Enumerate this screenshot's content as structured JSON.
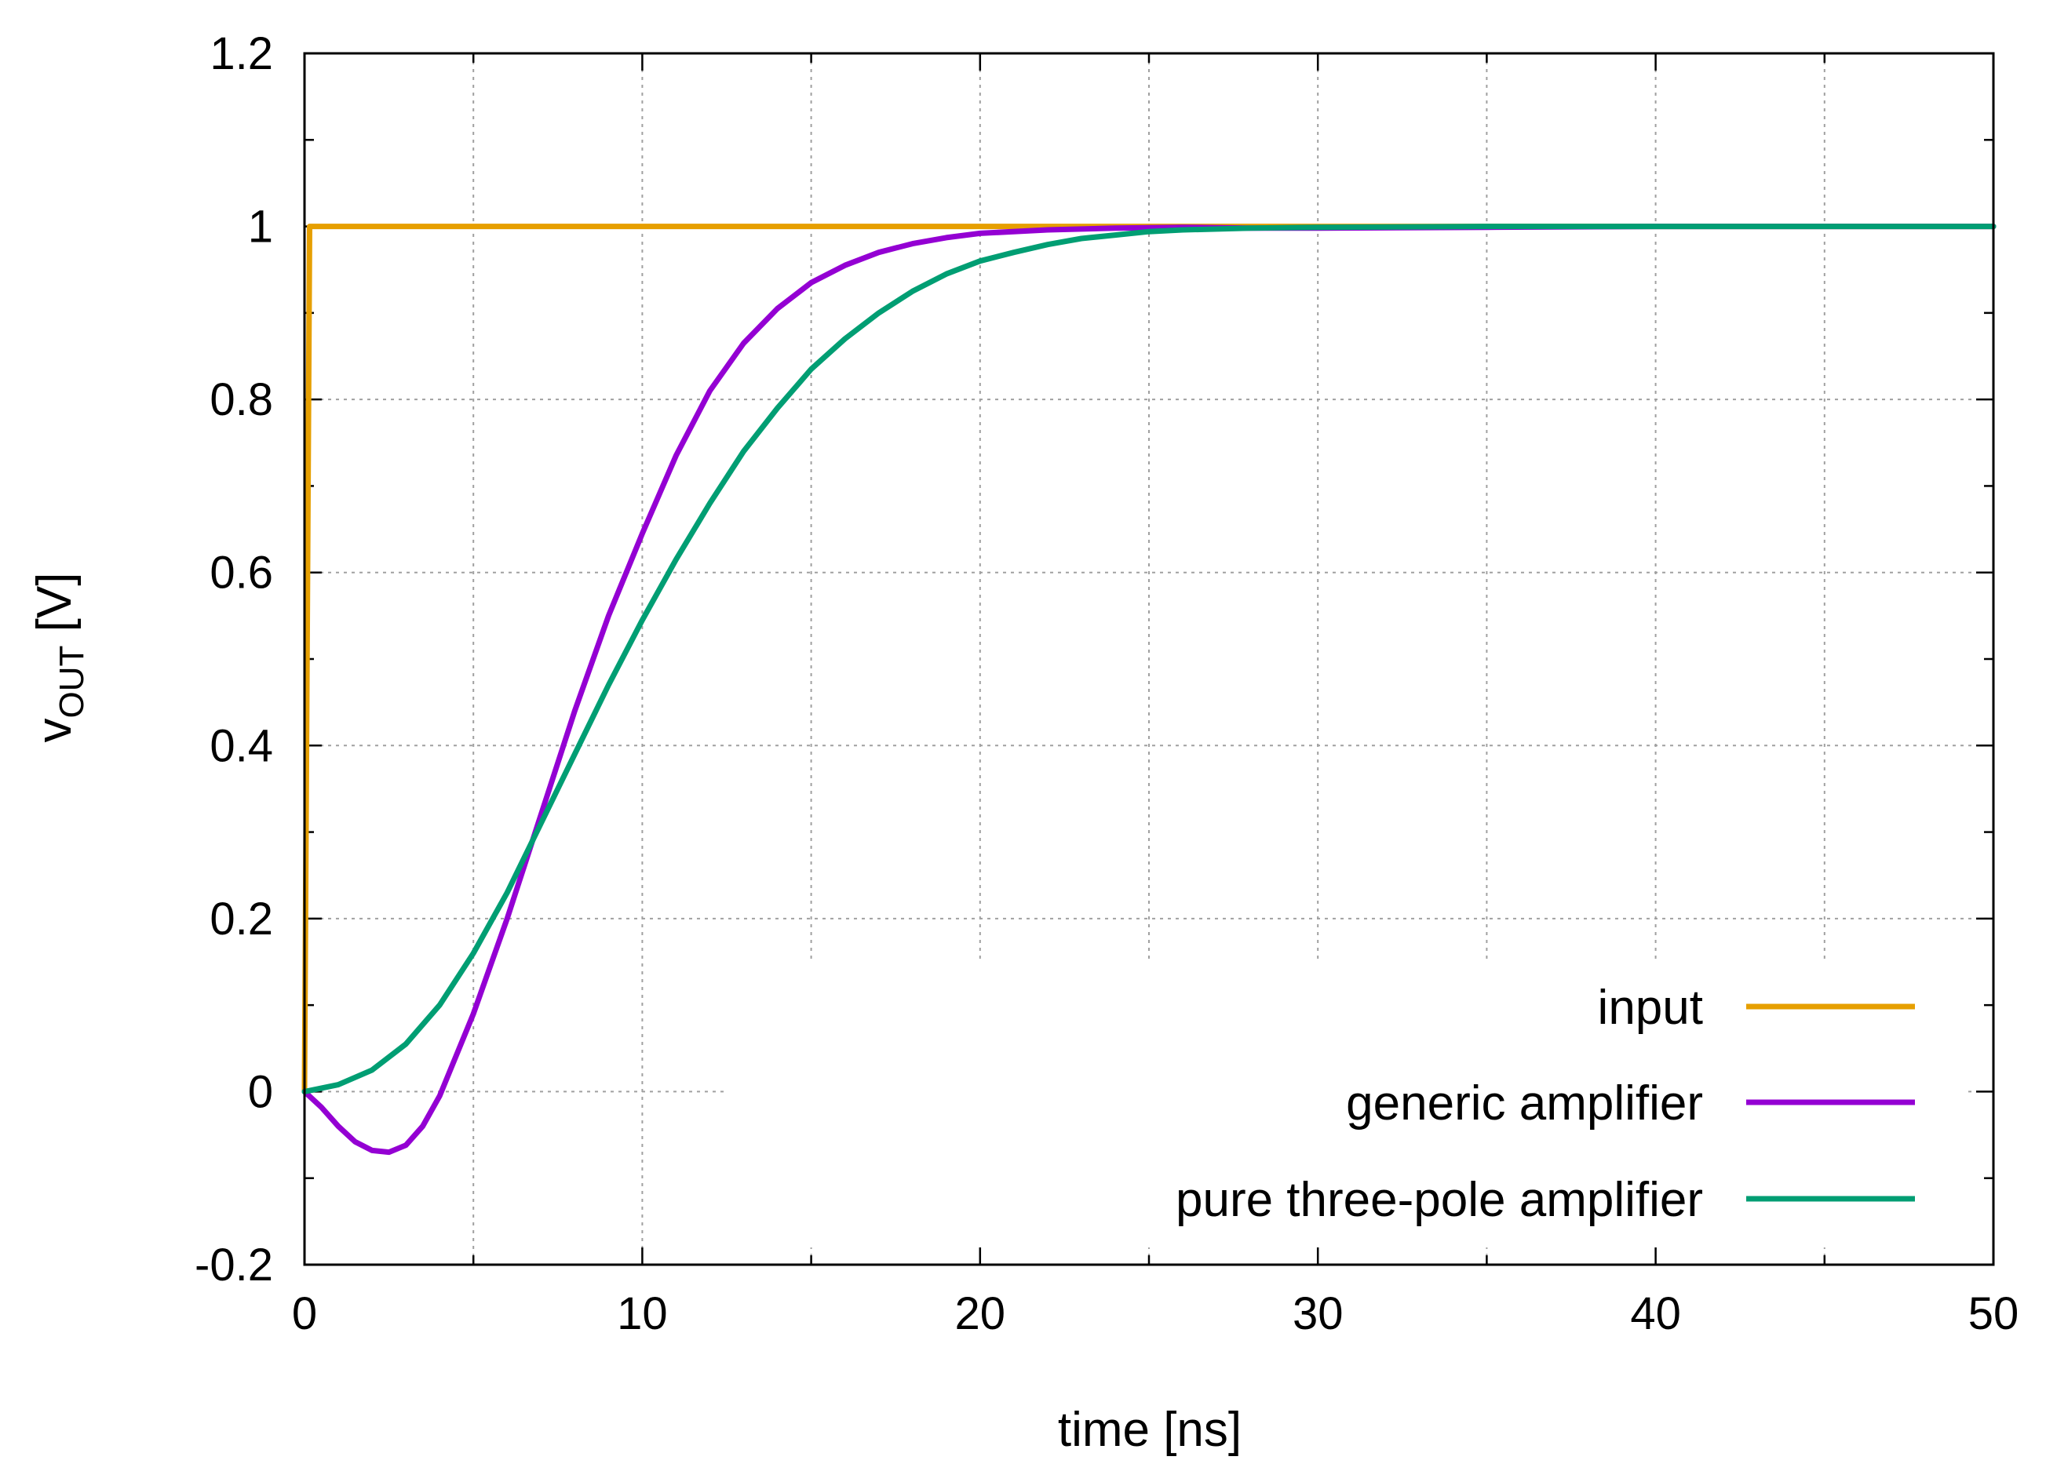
{
  "chart_data": {
    "type": "line",
    "title": "",
    "xlabel": "time [ns]",
    "ylabel": {
      "main": "v",
      "sub": "OUT",
      "unit": " [V]"
    },
    "xlim": [
      0,
      50
    ],
    "ylim": [
      -0.2,
      1.2
    ],
    "xticks": [
      0,
      10,
      20,
      30,
      40,
      50
    ],
    "xtick_labels": [
      "0",
      "10",
      "20",
      "30",
      "40",
      "50"
    ],
    "yticks": [
      -0.2,
      0,
      0.2,
      0.4,
      0.6,
      0.8,
      1,
      1.2
    ],
    "ytick_labels": [
      "-0.2",
      "0",
      "0.2",
      "0.4",
      "0.6",
      "0.8",
      "1",
      "1.2"
    ],
    "grid": true,
    "legend_position": "bottom-right",
    "series": [
      {
        "name": "input",
        "color": "#e69f00",
        "x": [
          0,
          0.15,
          0.2,
          50
        ],
        "y": [
          0,
          1,
          1,
          1
        ]
      },
      {
        "name": "generic amplifier",
        "color": "#9400d3",
        "x": [
          0,
          0.5,
          1,
          1.5,
          2,
          2.5,
          3,
          3.5,
          4,
          5,
          6,
          7,
          8,
          9,
          10,
          11,
          12,
          13,
          14,
          15,
          16,
          17,
          18,
          19,
          20,
          22,
          24,
          26,
          28,
          30,
          35,
          40,
          45,
          50
        ],
        "y": [
          0,
          -0.018,
          -0.04,
          -0.058,
          -0.068,
          -0.07,
          -0.062,
          -0.04,
          -0.005,
          0.09,
          0.2,
          0.32,
          0.44,
          0.55,
          0.645,
          0.735,
          0.81,
          0.865,
          0.905,
          0.935,
          0.955,
          0.97,
          0.98,
          0.987,
          0.992,
          0.996,
          0.998,
          0.999,
          0.998,
          0.998,
          0.999,
          1.0,
          1.0,
          1.0
        ]
      },
      {
        "name": "pure three-pole amplifier",
        "color": "#009e73",
        "x": [
          0,
          1,
          2,
          3,
          4,
          5,
          6,
          7,
          8,
          9,
          10,
          11,
          12,
          13,
          14,
          15,
          16,
          17,
          18,
          19,
          20,
          21,
          22,
          23,
          24,
          25,
          26,
          28,
          30,
          35,
          40,
          45,
          50
        ],
        "y": [
          0,
          0.008,
          0.025,
          0.055,
          0.1,
          0.16,
          0.23,
          0.31,
          0.39,
          0.47,
          0.545,
          0.615,
          0.68,
          0.74,
          0.79,
          0.835,
          0.87,
          0.9,
          0.925,
          0.945,
          0.96,
          0.97,
          0.979,
          0.986,
          0.99,
          0.994,
          0.996,
          0.998,
          0.999,
          1.0,
          1.0,
          1.0,
          1.0
        ]
      }
    ]
  }
}
